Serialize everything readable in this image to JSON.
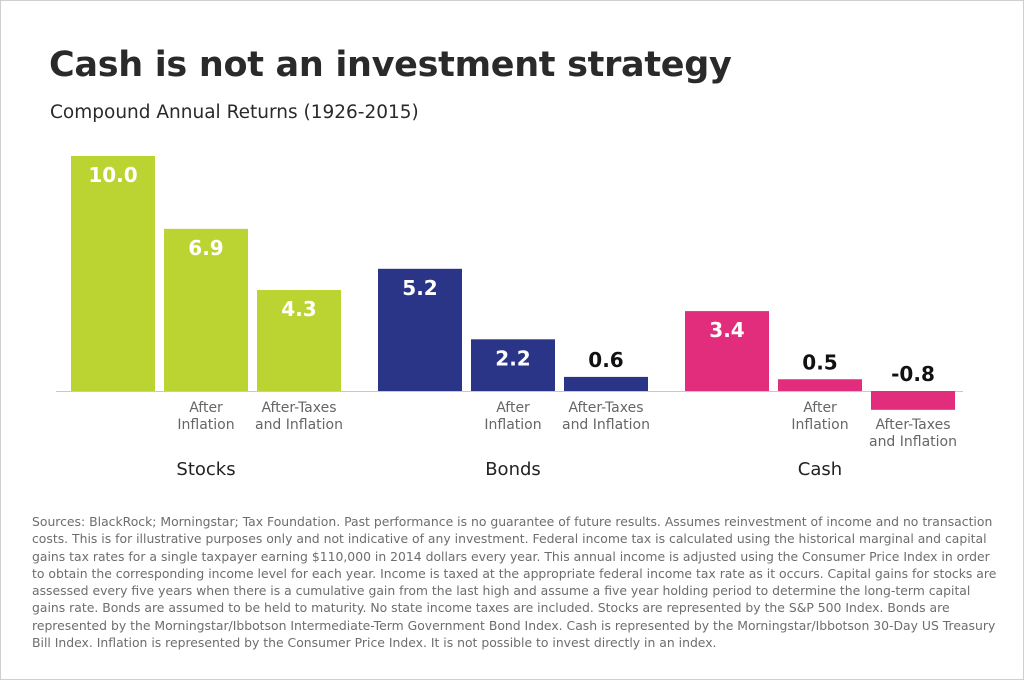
{
  "title": "Cash is not an investment strategy",
  "subtitle": "Compound Annual Returns (1926-2015)",
  "colors": {
    "stocks": "#bcd432",
    "bonds": "#2b3587",
    "cash": "#e22d7c",
    "baseline": "#c8c8c8"
  },
  "chart_data": {
    "type": "bar",
    "title": "Cash is not an investment strategy",
    "subtitle": "Compound Annual Returns (1926-2015)",
    "ylabel": "",
    "xlabel": "",
    "ylim": [
      -0.8,
      10.0
    ],
    "grid": false,
    "groups": [
      {
        "name": "Stocks",
        "color": "#bcd432",
        "bars": [
          {
            "label": "",
            "value": 10.0,
            "display": "10.0"
          },
          {
            "label": "After\nInflation",
            "value": 6.9,
            "display": "6.9"
          },
          {
            "label": "After-Taxes\nand Inflation",
            "value": 4.3,
            "display": "4.3"
          }
        ]
      },
      {
        "name": "Bonds",
        "color": "#2b3587",
        "bars": [
          {
            "label": "",
            "value": 5.2,
            "display": "5.2"
          },
          {
            "label": "After\nInflation",
            "value": 2.2,
            "display": "2.2"
          },
          {
            "label": "After-Taxes\nand Inflation",
            "value": 0.6,
            "display": "0.6"
          }
        ]
      },
      {
        "name": "Cash",
        "color": "#e22d7c",
        "bars": [
          {
            "label": "",
            "value": 3.4,
            "display": "3.4"
          },
          {
            "label": "After\nInflation",
            "value": 0.5,
            "display": "0.5"
          },
          {
            "label": "After-Taxes\nand Inflation",
            "value": -0.8,
            "display": "-0.8"
          }
        ]
      }
    ]
  },
  "footnote": "Sources: BlackRock; Morningstar; Tax Foundation. Past performance is no guarantee of future results. Assumes reinvestment of income and no transaction costs. This is for illustrative purposes only and not indicative of any investment. Federal income tax is calculated using the historical marginal and capital gains tax rates for a single taxpayer earning $110,000 in 2014 dollars every year. This annual income is adjusted using the Consumer Price Index in order to obtain the corresponding income level for each year. Income is taxed at the appropriate federal income tax rate as it occurs. Capital gains for stocks are assessed every five years when there is a cumulative gain from the last high and assume a five year holding period to determine the long-term capital gains rate. Bonds are assumed to be held to maturity. No state income taxes are included. Stocks are represented by the S&P 500 Index. Bonds are represented by the Morningstar/Ibbotson Intermediate-Term Government Bond Index. Cash is represented by the Morningstar/Ibbotson 30-Day US Treasury Bill Index. Inflation is represented by the Consumer Price Index. It is not possible to invest directly in an index."
}
